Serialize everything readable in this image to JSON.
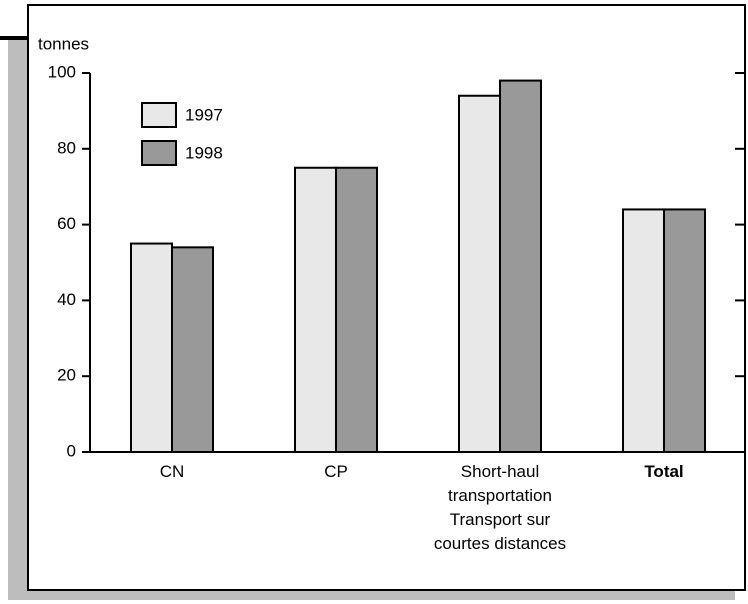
{
  "chart_data": {
    "type": "bar",
    "y_label": "tonnes",
    "categories": [
      "CN",
      "CP",
      "Short-haul\ntransportation\nTransport sur\ncourtes distances",
      "Total"
    ],
    "series": [
      {
        "name": "1997",
        "color": "#e8e8e8",
        "values": [
          55,
          75,
          94,
          64
        ]
      },
      {
        "name": "1998",
        "color": "#999999",
        "values": [
          54,
          75,
          98,
          64
        ]
      }
    ],
    "ylim": [
      0,
      100
    ],
    "yticks": [
      0,
      20,
      40,
      60,
      80,
      100
    ],
    "legend": "upper-left"
  }
}
